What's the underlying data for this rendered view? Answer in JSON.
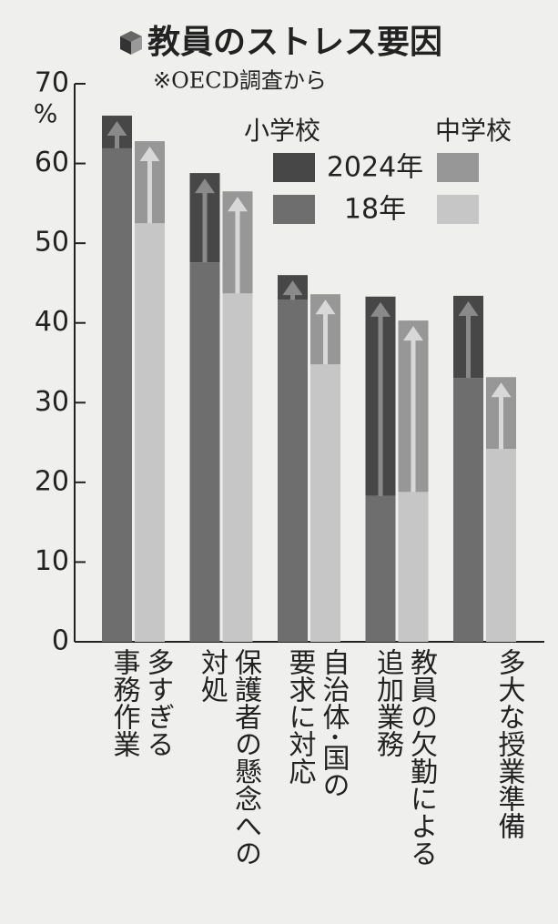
{
  "chart_data": {
    "type": "bar",
    "title": "教員のストレス要因",
    "subtitle": "※OECD調査から",
    "y_unit": "%",
    "categories": [
      "多すぎる\n事務作業",
      "保護者の懸念への\n対処",
      "自治体･国の\n要求に対応",
      "教員の欠勤による\n追加業務",
      "多大な授業準備"
    ],
    "legend_rows": [
      "2024年",
      "18年"
    ],
    "series": [
      {
        "name": "小学校",
        "colors": [
          "#474747",
          "#6e6e6e"
        ],
        "values": [
          66.0,
          58.8,
          46.0,
          43.3,
          43.4
        ],
        "base_values": [
          61.9,
          47.6,
          42.9,
          18.3,
          33.1
        ]
      },
      {
        "name": "中学校",
        "colors": [
          "#979797",
          "#c6c6c6"
        ],
        "values": [
          62.8,
          56.5,
          43.6,
          40.3,
          33.2
        ],
        "base_values": [
          52.5,
          43.7,
          34.8,
          18.8,
          24.2
        ]
      }
    ],
    "ylim": [
      0,
      70
    ],
    "yticks": [
      0,
      10,
      20,
      30,
      40,
      50,
      60,
      70
    ]
  }
}
